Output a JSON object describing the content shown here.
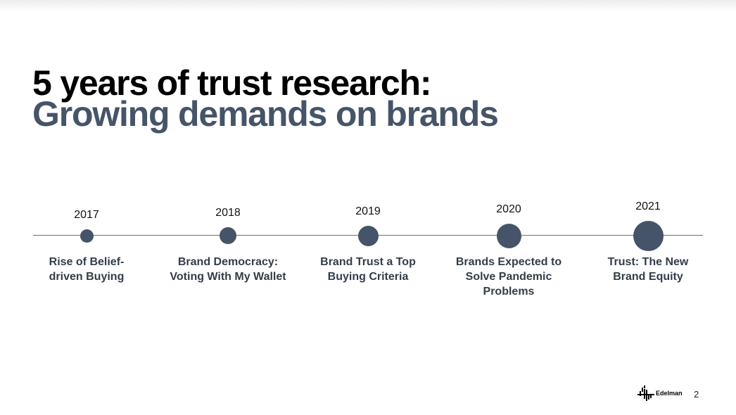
{
  "title": {
    "line1": "5 years of trust research:",
    "line2": "Growing demands on brands"
  },
  "timeline": [
    {
      "year": "2017",
      "label": [
        "Rise of Belief-",
        "driven Buying"
      ]
    },
    {
      "year": "2018",
      "label": [
        "Brand Democracy:",
        "Voting With My Wallet"
      ]
    },
    {
      "year": "2019",
      "label": [
        "Brand Trust a Top",
        "Buying Criteria"
      ]
    },
    {
      "year": "2020",
      "label": [
        "Brands Expected to",
        "Solve Pandemic",
        "Problems"
      ]
    },
    {
      "year": "2021",
      "label": [
        "Trust: The New",
        "Brand Equity"
      ]
    }
  ],
  "footer": {
    "logo_icon": "edelman-logo-icon",
    "logo_text": "Edelman",
    "page_number": "2"
  },
  "colors": {
    "accent": "#465469",
    "title": "#000000",
    "line": "#6f6f6f"
  }
}
